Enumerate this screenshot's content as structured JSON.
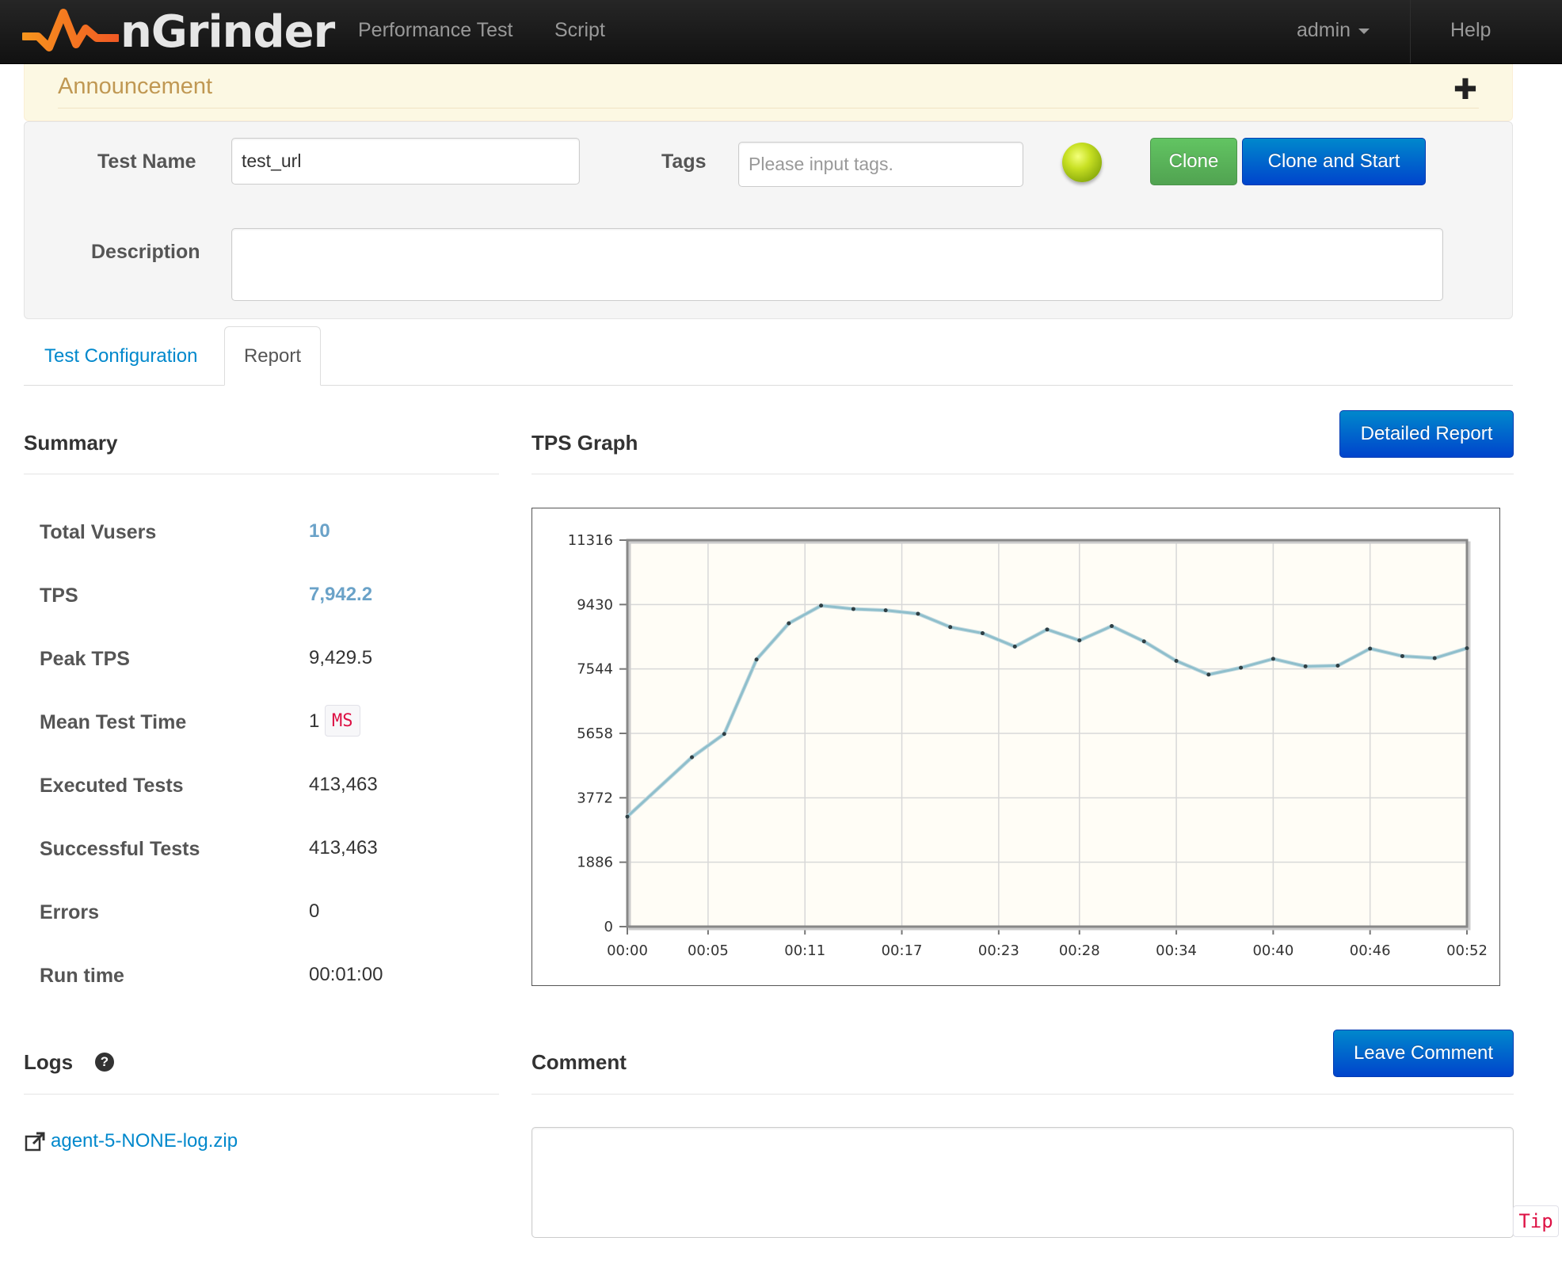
{
  "navbar": {
    "brand": "nGrinder",
    "links": [
      "Performance Test",
      "Script"
    ],
    "user": "admin",
    "help": "Help"
  },
  "announcement": {
    "title": "Announcement",
    "expand_icon": "plus-icon"
  },
  "test_info": {
    "test_name_label": "Test Name",
    "test_name_value": "test_url",
    "tags_label": "Tags",
    "tags_placeholder": "Please input tags.",
    "status_color": "#a8c81a",
    "clone_button": "Clone",
    "clone_start_button": "Clone and Start",
    "description_label": "Description",
    "description_value": ""
  },
  "tabs": [
    {
      "label": "Test Configuration",
      "active": false
    },
    {
      "label": "Report",
      "active": true
    }
  ],
  "summary": {
    "title": "Summary",
    "rows": [
      {
        "label": "Total Vusers",
        "value": "10"
      },
      {
        "label": "TPS",
        "value": "7,942.2"
      },
      {
        "label": "Peak TPS",
        "value": "9,429.5"
      },
      {
        "label": "Mean Test Time",
        "value": "1",
        "unit": "MS"
      },
      {
        "label": "Executed Tests",
        "value": "413,463"
      },
      {
        "label": "Successful Tests",
        "value": "413,463"
      },
      {
        "label": "Errors",
        "value": "0"
      },
      {
        "label": "Run time",
        "value": "00:01:00"
      }
    ]
  },
  "tps_graph": {
    "title": "TPS Graph",
    "detailed_report_button": "Detailed Report"
  },
  "chart_data": {
    "type": "line",
    "title": "",
    "xlabel": "",
    "ylabel": "",
    "ylim": [
      0,
      11316
    ],
    "y_ticks": [
      "0",
      "1886",
      "3772",
      "5658",
      "7544",
      "9430",
      "11316"
    ],
    "x_ticks": [
      "00:00",
      "00:05",
      "00:11",
      "00:17",
      "00:23",
      "00:28",
      "00:34",
      "00:40",
      "00:46",
      "00:52"
    ],
    "grid": true,
    "line_color": "#8fbfcc",
    "series": [
      {
        "x": [
          "00:00",
          "00:04",
          "00:06",
          "00:08",
          "00:10",
          "00:12",
          "00:14",
          "00:16",
          "00:18",
          "00:20",
          "00:22",
          "00:24",
          "00:26",
          "00:28",
          "00:30",
          "00:32",
          "00:34",
          "00:36",
          "00:38",
          "00:40",
          "00:42",
          "00:44",
          "00:46",
          "00:48",
          "00:50",
          "00:52"
        ],
        "values": [
          3220,
          4960,
          5640,
          7820,
          8880,
          9400,
          9300,
          9260,
          9160,
          8770,
          8590,
          8200,
          8700,
          8380,
          8800,
          8350,
          7780,
          7380,
          7580,
          7840,
          7620,
          7640,
          8140,
          7920,
          7860,
          8150
        ]
      }
    ]
  },
  "logs": {
    "title": "Logs",
    "help_icon": "question-circle-icon",
    "file": "agent-5-NONE-log.zip",
    "link_icon": "external-link-icon"
  },
  "comment": {
    "title": "Comment",
    "leave_button": "Leave Comment",
    "value": "",
    "tip": "Tip"
  }
}
